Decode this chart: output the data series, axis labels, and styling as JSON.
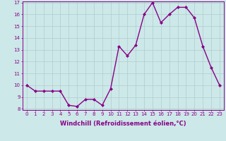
{
  "x": [
    0,
    1,
    2,
    3,
    4,
    5,
    6,
    7,
    8,
    9,
    10,
    11,
    12,
    13,
    14,
    15,
    16,
    17,
    18,
    19,
    20,
    21,
    22,
    23
  ],
  "y": [
    10,
    9.5,
    9.5,
    9.5,
    9.5,
    8.3,
    8.2,
    8.8,
    8.8,
    8.3,
    9.7,
    13.3,
    12.5,
    13.4,
    16.0,
    17.0,
    15.3,
    16.0,
    16.6,
    16.6,
    15.7,
    13.3,
    11.5,
    10.0
  ],
  "line_color": "#880088",
  "marker": "D",
  "marker_size": 2.0,
  "xlabel": "Windchill (Refroidissement éolien,°C)",
  "xlabel_fontsize": 6.0,
  "bg_color": "#cce8e8",
  "grid_color": "#b0cccc",
  "ylim": [
    8,
    17
  ],
  "xlim": [
    -0.5,
    23.5
  ],
  "yticks": [
    8,
    9,
    10,
    11,
    12,
    13,
    14,
    15,
    16,
    17
  ],
  "xticks": [
    0,
    1,
    2,
    3,
    4,
    5,
    6,
    7,
    8,
    9,
    10,
    11,
    12,
    13,
    14,
    15,
    16,
    17,
    18,
    19,
    20,
    21,
    22,
    23
  ],
  "tick_fontsize": 5.0,
  "line_width": 1.0
}
